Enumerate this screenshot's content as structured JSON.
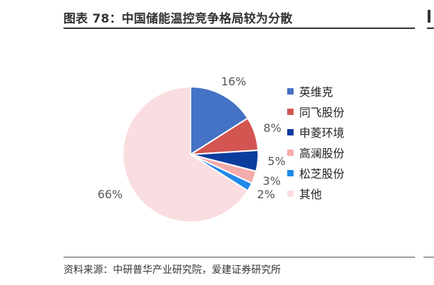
{
  "title": "图表 78：中国储能温控竞争格局较为分散",
  "source": "资料来源：中研普华产业研究院，爱建证券研究所",
  "chart_data": {
    "type": "pie",
    "title": "",
    "slices": [
      {
        "name": "英维克",
        "value": 16,
        "label": "16%",
        "color": "#4472C4"
      },
      {
        "name": "同飞股份",
        "value": 8,
        "label": "8%",
        "color": "#D25552"
      },
      {
        "name": "申菱环境",
        "value": 5,
        "label": "5%",
        "color": "#0B3D9E"
      },
      {
        "name": "高澜股份",
        "value": 3,
        "label": "3%",
        "color": "#F4ABAB"
      },
      {
        "name": "松芝股份",
        "value": 2,
        "label": "2%",
        "color": "#2189EA"
      },
      {
        "name": "其他",
        "value": 66,
        "label": "66%",
        "color": "#FADDE0"
      }
    ],
    "legend_position": "right",
    "start_angle": "top, clockwise"
  }
}
